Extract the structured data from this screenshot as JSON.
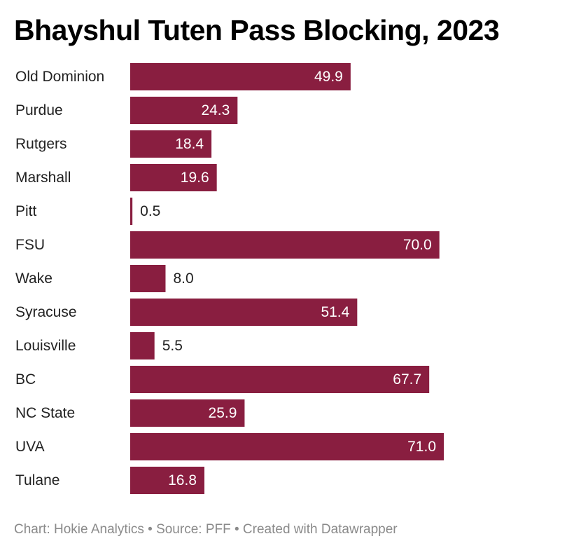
{
  "colors": {
    "bar": "#891e40",
    "label_inside": "#ffffff",
    "label_outside": "#222222"
  },
  "chart_data": {
    "type": "bar",
    "orientation": "horizontal",
    "title": "Bhayshul Tuten Pass Blocking, 2023",
    "categories": [
      "Old Dominion",
      "Purdue",
      "Rutgers",
      "Marshall",
      "Pitt",
      "FSU",
      "Wake",
      "Syracuse",
      "Louisville",
      "BC",
      "NC State",
      "UVA",
      "Tulane"
    ],
    "values": [
      49.9,
      24.3,
      18.4,
      19.6,
      0.5,
      70.0,
      8.0,
      51.4,
      5.5,
      67.7,
      25.9,
      71.0,
      16.8
    ],
    "value_labels": [
      "49.9",
      "24.3",
      "18.4",
      "19.6",
      "0.5",
      "70.0",
      "8.0",
      "51.4",
      "5.5",
      "67.7",
      "25.9",
      "71.0",
      "16.8"
    ],
    "xlim": [
      0,
      71.0
    ],
    "grid": false,
    "legend": "none"
  },
  "footer": {
    "text": "Chart: Hokie Analytics • Source: PFF • Created with Datawrapper"
  }
}
